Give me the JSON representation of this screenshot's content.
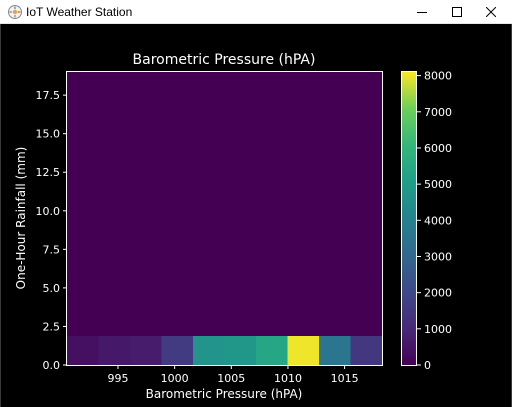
{
  "window": {
    "title": "IoT Weather Station",
    "icon": "weather-station-icon",
    "controls": [
      "minimize-icon",
      "maximize-icon",
      "close-icon"
    ]
  },
  "colors": {
    "background": "#000000",
    "axes": "#ffffff",
    "cmap_low": "#440154",
    "cmap_high": "#fde725"
  },
  "chart_data": {
    "type": "heatmap",
    "title": "Barometric Pressure (hPA)",
    "xlabel": "Barometric Pressure (hPA)",
    "ylabel": "One-Hour Rainfall (mm)",
    "xlim": [
      990.5,
      1018.3
    ],
    "ylim": [
      0,
      19
    ],
    "xticks": [
      995,
      1000,
      1005,
      1010,
      1015
    ],
    "xtick_labels": [
      "995",
      "1000",
      "1005",
      "1010",
      "1015"
    ],
    "yticks": [
      0,
      2.5,
      5,
      7.5,
      10,
      12.5,
      15,
      17.5
    ],
    "ytick_labels": [
      "0.0",
      "2.5",
      "5.0",
      "7.5",
      "10.0",
      "12.5",
      "15.0",
      "17.5"
    ],
    "x_bin_edges": [
      990.5,
      993.28,
      996.06,
      998.84,
      1001.62,
      1004.4,
      1007.18,
      1009.96,
      1012.74,
      1015.52,
      1018.3
    ],
    "y_bin_edges": [
      0,
      1.9,
      3.8,
      5.7,
      7.6,
      9.5,
      11.4,
      13.3,
      15.2,
      17.1,
      19
    ],
    "values": [
      [
        400,
        600,
        700,
        1600,
        4700,
        4800,
        5400,
        8000,
        3600,
        1500
      ],
      [
        0,
        0,
        0,
        0,
        0,
        0,
        0,
        0,
        0,
        0
      ],
      [
        0,
        0,
        0,
        0,
        0,
        0,
        0,
        0,
        0,
        0
      ],
      [
        0,
        0,
        0,
        0,
        0,
        0,
        0,
        0,
        0,
        0
      ],
      [
        0,
        0,
        0,
        0,
        0,
        0,
        0,
        0,
        0,
        0
      ],
      [
        0,
        0,
        0,
        0,
        0,
        0,
        0,
        0,
        0,
        0
      ],
      [
        0,
        0,
        0,
        0,
        0,
        0,
        0,
        0,
        0,
        0
      ],
      [
        0,
        0,
        0,
        0,
        0,
        0,
        0,
        0,
        0,
        0
      ],
      [
        0,
        0,
        0,
        0,
        0,
        0,
        0,
        0,
        0,
        0
      ],
      [
        0,
        0,
        0,
        0,
        0,
        0,
        0,
        0,
        0,
        0
      ]
    ],
    "colorbar": {
      "range": [
        0,
        8100
      ],
      "ticks": [
        0,
        1000,
        2000,
        3000,
        4000,
        5000,
        6000,
        7000,
        8000
      ],
      "tick_labels": [
        "0",
        "1000",
        "2000",
        "3000",
        "4000",
        "5000",
        "6000",
        "7000",
        "8000"
      ],
      "colormap": "viridis"
    },
    "grid": false
  }
}
